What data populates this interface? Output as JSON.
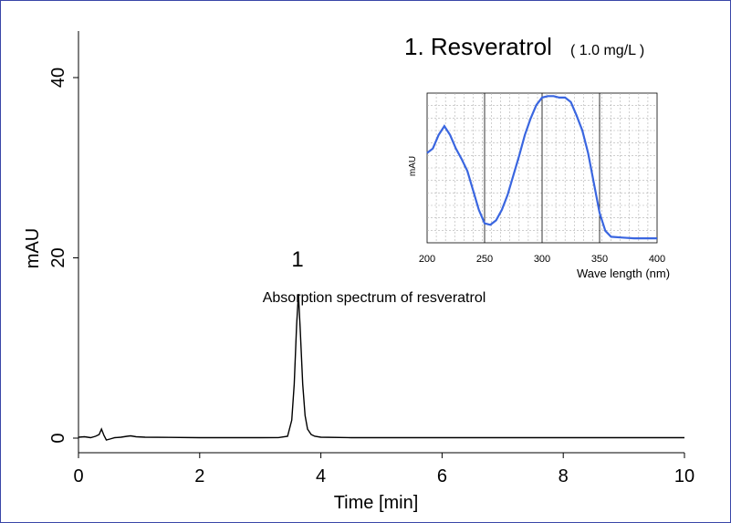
{
  "colors": {
    "border": "#3a46a8",
    "main_trace": "#000000",
    "spectrum_trace": "#3a66e0",
    "grid": "#b0b0b0"
  },
  "chart_data": [
    {
      "type": "line",
      "title": "1. Resveratrol",
      "title_note": "( 1.0 mg/L )",
      "xlabel": "Time [min]",
      "ylabel": "mAU",
      "xlim": [
        0,
        10
      ],
      "ylim": [
        -1,
        45
      ],
      "x_ticks": [
        "0",
        "2",
        "4",
        "6",
        "8",
        "10"
      ],
      "y_ticks": [
        "0",
        "20",
        "40"
      ],
      "grid": false,
      "peak_label": "1",
      "annotation": "Absorption spectrum of resveratrol",
      "series": [
        {
          "x": [
            0,
            0.1,
            0.2,
            0.28,
            0.34,
            0.38,
            0.42,
            0.46,
            0.52,
            0.6,
            0.7,
            0.8,
            0.86,
            0.95,
            1.1,
            1.5,
            2.0,
            2.5,
            3.0,
            3.3,
            3.45,
            3.52,
            3.56,
            3.6,
            3.63,
            3.66,
            3.7,
            3.74,
            3.78,
            3.84,
            3.9,
            4.0,
            4.5,
            5,
            6,
            7,
            8,
            9,
            10
          ],
          "y": [
            0.1,
            0.15,
            0.05,
            0.2,
            0.4,
            1.0,
            0.3,
            -0.2,
            -0.1,
            0.05,
            0.1,
            0.2,
            0.25,
            0.15,
            0.1,
            0.08,
            0.05,
            0.05,
            0.05,
            0.06,
            0.2,
            2.0,
            6.0,
            12.5,
            16.0,
            12.0,
            6.0,
            2.5,
            1.0,
            0.4,
            0.2,
            0.1,
            0.05,
            0.05,
            0.05,
            0.05,
            0.05,
            0.05,
            0.05
          ]
        }
      ]
    },
    {
      "type": "line",
      "xlabel": "Wave length  (nm)",
      "ylabel": "mAU",
      "xlim": [
        200,
        400
      ],
      "x_ticks": [
        "200",
        "250",
        "300",
        "350",
        "400"
      ],
      "grid": true,
      "series": [
        {
          "x": [
            200,
            205,
            210,
            215,
            220,
            225,
            230,
            235,
            240,
            245,
            250,
            255,
            260,
            265,
            270,
            275,
            280,
            285,
            290,
            295,
            300,
            305,
            310,
            315,
            320,
            325,
            330,
            335,
            340,
            345,
            350,
            355,
            360,
            370,
            380,
            390,
            400
          ],
          "y": [
            60,
            63,
            72,
            78,
            72,
            63,
            56,
            48,
            35,
            22,
            13,
            12,
            15,
            22,
            32,
            45,
            58,
            72,
            83,
            92,
            97,
            98,
            98,
            97,
            97,
            94,
            85,
            75,
            60,
            40,
            20,
            8,
            4,
            3.5,
            3,
            3,
            3
          ]
        }
      ]
    }
  ]
}
